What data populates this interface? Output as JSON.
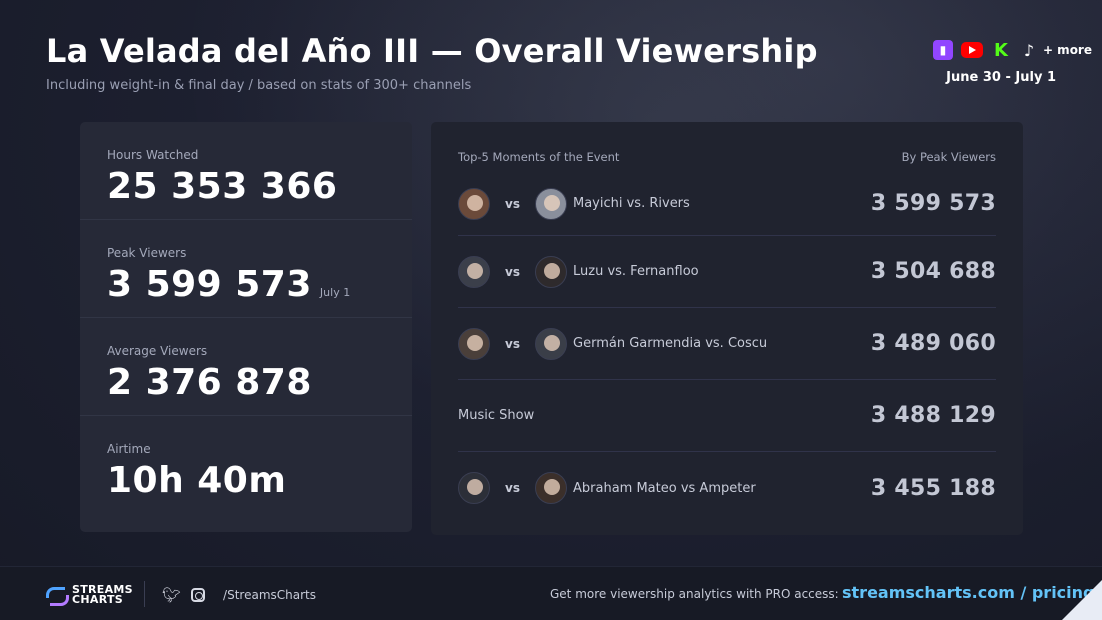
{
  "header": {
    "title": "La Velada del Año III — Overall Viewership",
    "subtitle": "Including weight-in & final day / based on stats of 300+ channels",
    "platforms_more": "+ more",
    "date_range": "June 30 - July 1"
  },
  "stats": [
    {
      "label": "Hours Watched",
      "value": "25 353 366",
      "note": ""
    },
    {
      "label": "Peak Viewers",
      "value": "3 599 573",
      "note": "July 1"
    },
    {
      "label": "Average Viewers",
      "value": "2 376 878",
      "note": ""
    },
    {
      "label": "Airtime",
      "value": "10h 40m",
      "note": ""
    }
  ],
  "moments": {
    "title": "Top-5 Moments of the Event",
    "sort_label": "By Peak Viewers",
    "vs_label": "vs",
    "items": [
      {
        "name": "Mayichi vs. Rivers",
        "value": "3 599 573"
      },
      {
        "name": "Luzu vs. Fernanfloo",
        "value": "3 504 688"
      },
      {
        "name": "Germán Garmendia vs. Coscu",
        "value": "3 489 060"
      },
      {
        "name": "Music Show",
        "value": "3 488 129"
      },
      {
        "name": "Abraham Mateo vs Ampeter",
        "value": "3 455 188"
      }
    ]
  },
  "footer": {
    "logo_line1": "STREAMS",
    "logo_line2": "CHARTS",
    "handle": "/StreamsCharts",
    "promo": "Get more viewership analytics with PRO access:",
    "link": "streamscharts.com / pricing"
  },
  "colors": {
    "twitch": "#9146ff",
    "youtube": "#ff0000",
    "kick": "#53fc18",
    "link": "#63c3f7"
  }
}
